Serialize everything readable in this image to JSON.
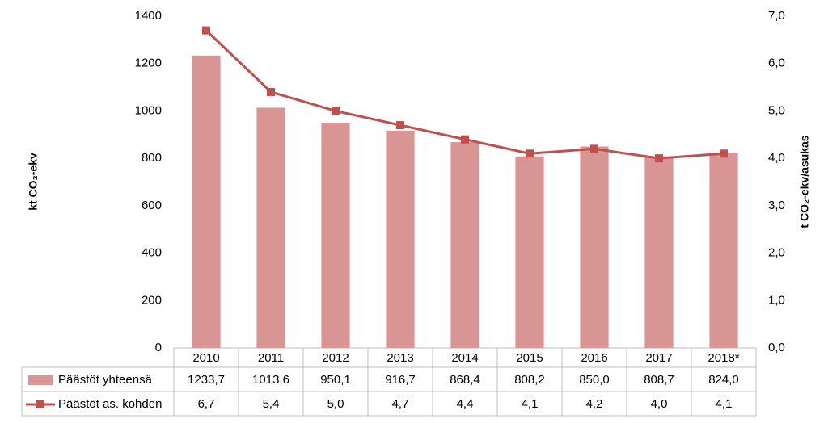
{
  "chart_data": {
    "type": "bar-line-table",
    "y_label": "kt CO₂-ekv",
    "y2_label": "t CO₂-ekv/asukas",
    "categories": [
      "2010",
      "2011",
      "2012",
      "2013",
      "2014",
      "2015",
      "2016",
      "2017",
      "2018*"
    ],
    "series": [
      {
        "name": "Päästöt yhteensä",
        "type": "bar",
        "color": "#d99594",
        "values": [
          1233.7,
          1013.6,
          950.1,
          916.7,
          868.4,
          808.2,
          850.0,
          808.7,
          824.0
        ],
        "value_labels": [
          "1233,7",
          "1013,6",
          "950,1",
          "916,7",
          "868,4",
          "808,2",
          "850,0",
          "808,7",
          "824,0"
        ]
      },
      {
        "name": "Päästöt as. kohden",
        "type": "line",
        "axis": "y2",
        "color": "#c0504d",
        "values": [
          6.7,
          5.4,
          5.0,
          4.7,
          4.4,
          4.1,
          4.2,
          4.0,
          4.1
        ],
        "value_labels": [
          "6,7",
          "5,4",
          "5,0",
          "4,7",
          "4,4",
          "4,1",
          "4,2",
          "4,0",
          "4,1"
        ]
      }
    ],
    "ylim": [
      0,
      1400
    ],
    "yticks": [
      0,
      200,
      400,
      600,
      800,
      1000,
      1200,
      1400
    ],
    "y2lim": [
      0,
      7
    ],
    "y2ticks": [
      {
        "value": 0,
        "label": "0,0"
      },
      {
        "value": 1,
        "label": "1,0"
      },
      {
        "value": 2,
        "label": "2,0"
      },
      {
        "value": 3,
        "label": "3,0"
      },
      {
        "value": 4,
        "label": "4,0"
      },
      {
        "value": 5,
        "label": "5,0"
      },
      {
        "value": 6,
        "label": "6,0"
      },
      {
        "value": 7,
        "label": "7,0"
      }
    ],
    "grid": false
  }
}
